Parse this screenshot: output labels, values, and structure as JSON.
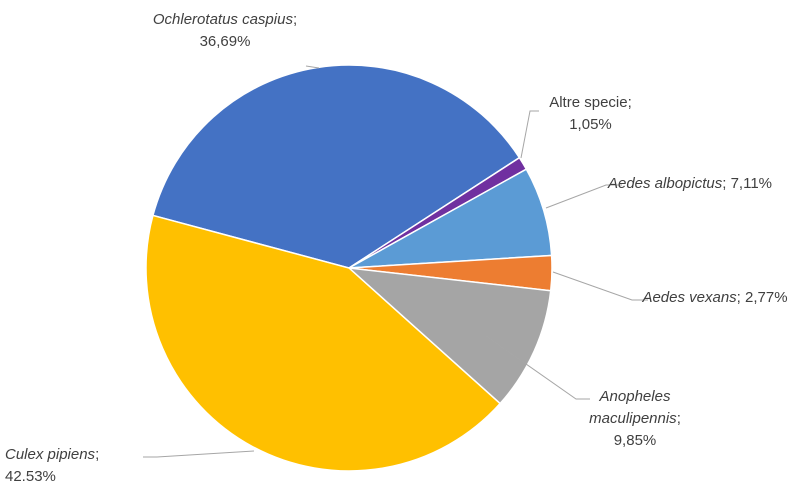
{
  "chart_data": {
    "type": "pie",
    "categories": [
      "Ochlerotatus caspius",
      "Altre specie",
      "Aedes albopictus",
      "Aedes vexans",
      "Anopheles maculipennis",
      "Culex pipiens"
    ],
    "values": [
      36.69,
      1.05,
      7.11,
      2.77,
      9.85,
      42.53
    ],
    "value_labels": [
      "36,69%",
      "1,05%",
      "7,11%",
      "2,77%",
      "9,85%",
      "42.53%"
    ],
    "label_separator": ";",
    "colors": [
      "#4472c4",
      "#7030a0",
      "#5b9bd5",
      "#ed7d31",
      "#a5a5a5",
      "#ffc000"
    ]
  }
}
